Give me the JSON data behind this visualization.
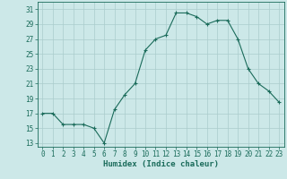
{
  "x": [
    0,
    1,
    2,
    3,
    4,
    5,
    6,
    7,
    8,
    9,
    10,
    11,
    12,
    13,
    14,
    15,
    16,
    17,
    18,
    19,
    20,
    21,
    22,
    23
  ],
  "y": [
    17,
    17,
    15.5,
    15.5,
    15.5,
    15,
    13,
    17.5,
    19.5,
    21,
    25.5,
    27,
    27.5,
    30.5,
    30.5,
    30,
    29,
    29.5,
    29.5,
    27,
    23,
    21,
    20,
    18.5
  ],
  "line_color": "#1a6b5a",
  "marker": "+",
  "marker_size": 3,
  "marker_lw": 0.8,
  "bg_color": "#cce8e8",
  "grid_color": "#aacccc",
  "xlabel": "Humidex (Indice chaleur)",
  "xlim": [
    -0.5,
    23.5
  ],
  "ylim": [
    12.5,
    32
  ],
  "yticks": [
    13,
    15,
    17,
    19,
    21,
    23,
    25,
    27,
    29,
    31
  ],
  "xticks": [
    0,
    1,
    2,
    3,
    4,
    5,
    6,
    7,
    8,
    9,
    10,
    11,
    12,
    13,
    14,
    15,
    16,
    17,
    18,
    19,
    20,
    21,
    22,
    23
  ],
  "xlabel_fontsize": 6.5,
  "tick_fontsize": 5.5,
  "line_width": 0.8
}
